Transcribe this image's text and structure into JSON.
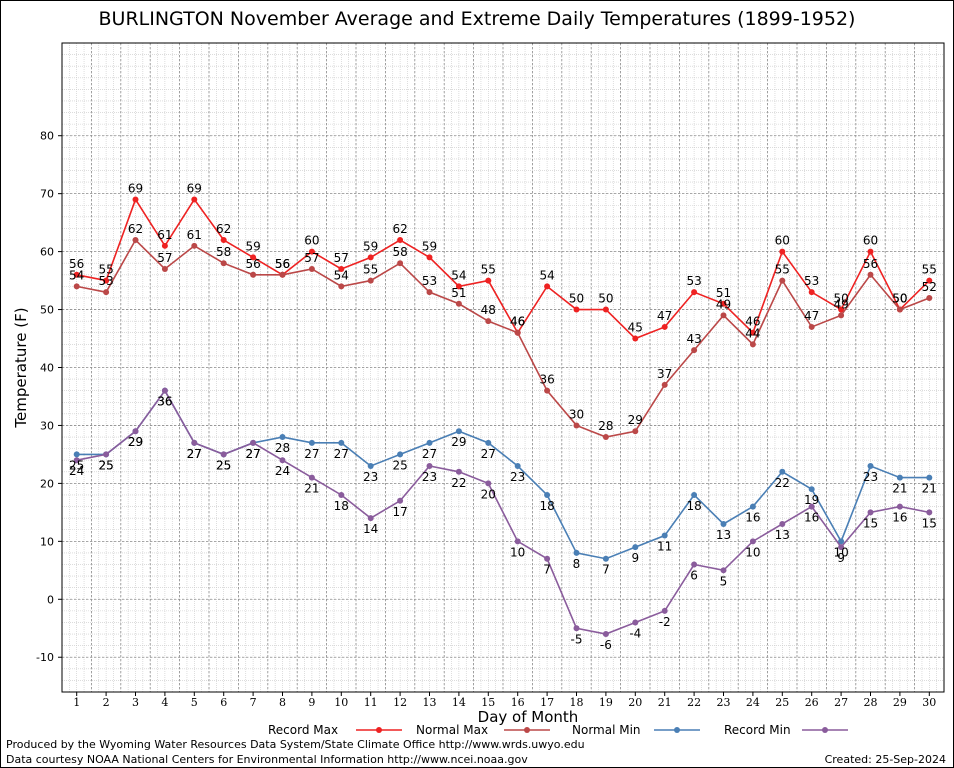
{
  "chart_data": {
    "type": "line",
    "title": "BURLINGTON November Average and Extreme Daily Temperatures (1899-1952)",
    "xlabel": "Day of Month",
    "ylabel": "Temperature (F)",
    "x": [
      1,
      2,
      3,
      4,
      5,
      6,
      7,
      8,
      9,
      10,
      11,
      12,
      13,
      14,
      15,
      16,
      17,
      18,
      19,
      20,
      21,
      22,
      23,
      24,
      25,
      26,
      27,
      28,
      29,
      30
    ],
    "xlim": [
      0.5,
      30.5
    ],
    "ylim": [
      -16,
      96
    ],
    "yticks": [
      -10,
      0,
      10,
      20,
      30,
      40,
      50,
      60,
      70,
      80
    ],
    "grid": true,
    "legend_position": "bottom",
    "series": [
      {
        "name": "Record Max",
        "color": "#ee2222",
        "values": [
          56,
          55,
          69,
          61,
          69,
          62,
          59,
          56,
          60,
          57,
          59,
          62,
          59,
          54,
          55,
          46,
          54,
          50,
          50,
          45,
          47,
          53,
          51,
          46,
          60,
          53,
          50,
          60,
          50,
          55
        ]
      },
      {
        "name": "Normal Max",
        "color": "#bb4848",
        "values": [
          54,
          53,
          62,
          57,
          61,
          58,
          56,
          56,
          57,
          54,
          55,
          58,
          53,
          51,
          48,
          46,
          36,
          30,
          28,
          29,
          37,
          43,
          49,
          44,
          55,
          47,
          49,
          56,
          50,
          52
        ]
      },
      {
        "name": "Normal Min",
        "color": "#4a7fb5",
        "values": [
          25,
          25,
          29,
          36,
          27,
          25,
          27,
          28,
          27,
          27,
          23,
          25,
          27,
          29,
          27,
          23,
          18,
          8,
          7,
          9,
          11,
          18,
          13,
          16,
          22,
          19,
          10,
          23,
          21,
          21
        ]
      },
      {
        "name": "Record Min",
        "color": "#8a5c9c",
        "values": [
          24,
          25,
          29,
          36,
          27,
          25,
          27,
          24,
          21,
          18,
          14,
          17,
          23,
          22,
          20,
          10,
          7,
          -5,
          -6,
          -4,
          -2,
          6,
          5,
          10,
          13,
          16,
          9,
          15,
          16,
          15
        ]
      }
    ]
  },
  "footer": {
    "produced": "Produced by the Wyoming Water Resources Data System/State Climate Office http://www.wrds.uwyo.edu",
    "courtesy": "Data courtesy NOAA National Centers for Environmental Information http://www.ncei.noaa.gov",
    "created": "Created:  25-Sep-2024"
  }
}
